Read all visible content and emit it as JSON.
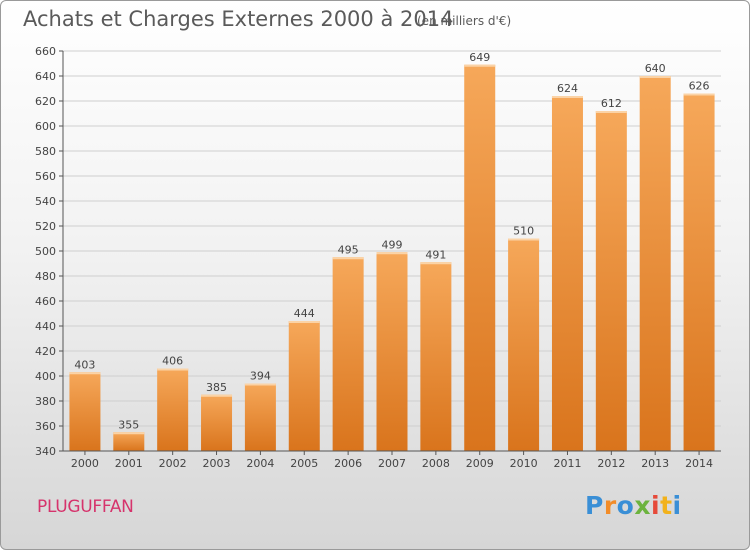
{
  "title": "Achats et Charges Externes 2000 à 2014",
  "unit_note": "(en milliers d'€)",
  "commune": "PLUGUFFAN",
  "logo": {
    "letters": [
      "P",
      "r",
      "o",
      "x",
      "i",
      "t",
      "i"
    ],
    "colors": [
      "#3a8fd6",
      "#f28c28",
      "#3a8fd6",
      "#6cb33e",
      "#e64a3a",
      "#f2b21b",
      "#3a8fd6"
    ]
  },
  "colors": {
    "bar_top": "#f6a85a",
    "bar_bottom": "#d9741c",
    "grid": "#cfcfcf",
    "axis_text": "#444444"
  },
  "chart_data": {
    "type": "bar",
    "categories": [
      "2000",
      "2001",
      "2002",
      "2003",
      "2004",
      "2005",
      "2006",
      "2007",
      "2008",
      "2009",
      "2010",
      "2011",
      "2012",
      "2013",
      "2014"
    ],
    "values": [
      403,
      355,
      406,
      385,
      394,
      444,
      495,
      499,
      491,
      649,
      510,
      624,
      612,
      640,
      626
    ],
    "title": "Achats et Charges Externes 2000 à 2014",
    "ylim": [
      340,
      660
    ],
    "yticks": [
      340,
      360,
      380,
      400,
      420,
      440,
      460,
      480,
      500,
      520,
      540,
      560,
      580,
      600,
      620,
      640,
      660
    ],
    "grid": true
  }
}
